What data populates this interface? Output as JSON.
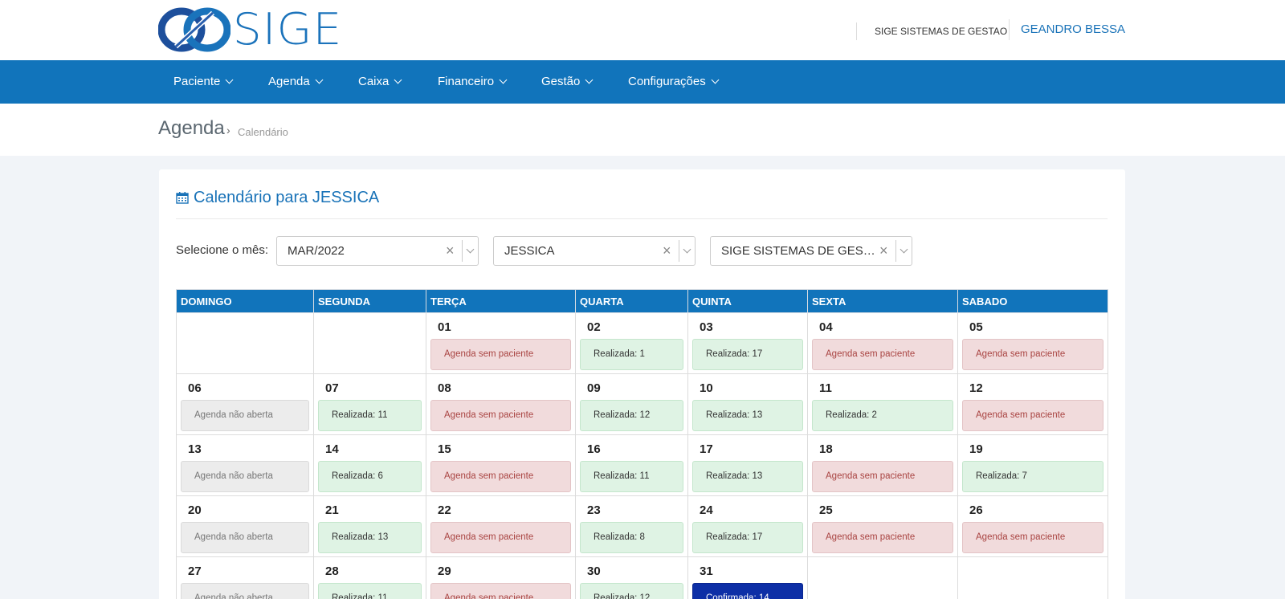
{
  "brand": {
    "logo_text": "SIGE",
    "company": "SIGE SISTEMAS DE GESTAO",
    "user": "GEANDRO BESSA"
  },
  "nav": [
    "Paciente",
    "Agenda",
    "Caixa",
    "Financeiro",
    "Gestão",
    "Configurações"
  ],
  "breadcrumb": {
    "title": "Agenda",
    "separator": "›",
    "current": "Calendário"
  },
  "card": {
    "title": "Calendário para JESSICA",
    "month_label": "Selecione o mês:",
    "selects": [
      {
        "value": "MAR/2022"
      },
      {
        "value": "JESSICA"
      },
      {
        "value": "SIGE SISTEMAS DE GESTAO"
      }
    ]
  },
  "calendar": {
    "headers": [
      "DOMINGO",
      "SEGUNDA",
      "TERÇA",
      "QUARTA",
      "QUINTA",
      "SEXTA",
      "SABADO"
    ],
    "weeks": [
      [
        null,
        null,
        {
          "day": "01",
          "status": "sem",
          "text": "Agenda sem paciente"
        },
        {
          "day": "02",
          "status": "real",
          "text": "Realizada: 1"
        },
        {
          "day": "03",
          "status": "real",
          "text": "Realizada: 17"
        },
        {
          "day": "04",
          "status": "sem",
          "text": "Agenda sem paciente"
        },
        {
          "day": "05",
          "status": "sem",
          "text": "Agenda sem paciente"
        }
      ],
      [
        {
          "day": "06",
          "status": "nao",
          "text": "Agenda não aberta"
        },
        {
          "day": "07",
          "status": "real",
          "text": "Realizada: 11"
        },
        {
          "day": "08",
          "status": "sem",
          "text": "Agenda sem paciente"
        },
        {
          "day": "09",
          "status": "real",
          "text": "Realizada: 12"
        },
        {
          "day": "10",
          "status": "real",
          "text": "Realizada: 13"
        },
        {
          "day": "11",
          "status": "real",
          "text": "Realizada: 2"
        },
        {
          "day": "12",
          "status": "sem",
          "text": "Agenda sem paciente"
        }
      ],
      [
        {
          "day": "13",
          "status": "nao",
          "text": "Agenda não aberta"
        },
        {
          "day": "14",
          "status": "real",
          "text": "Realizada: 6"
        },
        {
          "day": "15",
          "status": "sem",
          "text": "Agenda sem paciente"
        },
        {
          "day": "16",
          "status": "real",
          "text": "Realizada: 11"
        },
        {
          "day": "17",
          "status": "real",
          "text": "Realizada: 13"
        },
        {
          "day": "18",
          "status": "sem",
          "text": "Agenda sem paciente"
        },
        {
          "day": "19",
          "status": "real",
          "text": "Realizada: 7"
        }
      ],
      [
        {
          "day": "20",
          "status": "nao",
          "text": "Agenda não aberta"
        },
        {
          "day": "21",
          "status": "real",
          "text": "Realizada: 13"
        },
        {
          "day": "22",
          "status": "sem",
          "text": "Agenda sem paciente"
        },
        {
          "day": "23",
          "status": "real",
          "text": "Realizada: 8"
        },
        {
          "day": "24",
          "status": "real",
          "text": "Realizada: 17"
        },
        {
          "day": "25",
          "status": "sem",
          "text": "Agenda sem paciente"
        },
        {
          "day": "26",
          "status": "sem",
          "text": "Agenda sem paciente"
        }
      ],
      [
        {
          "day": "27",
          "status": "nao",
          "text": "Agenda não aberta"
        },
        {
          "day": "28",
          "status": "real",
          "text": "Realizada: 11"
        },
        {
          "day": "29",
          "status": "sem",
          "text": "Agenda sem paciente"
        },
        {
          "day": "30",
          "status": "real",
          "text": "Realizada: 12"
        },
        {
          "day": "31",
          "status": "conf",
          "text": "Confirmada: 14"
        },
        null,
        null
      ]
    ]
  },
  "colors": {
    "primary": "#1174bb",
    "link": "#1a73b8",
    "confirmed": "#0d2fa6",
    "sem_bg": "#f1dbdc",
    "real_bg": "#dff3e4",
    "nao_bg": "#ececec"
  }
}
